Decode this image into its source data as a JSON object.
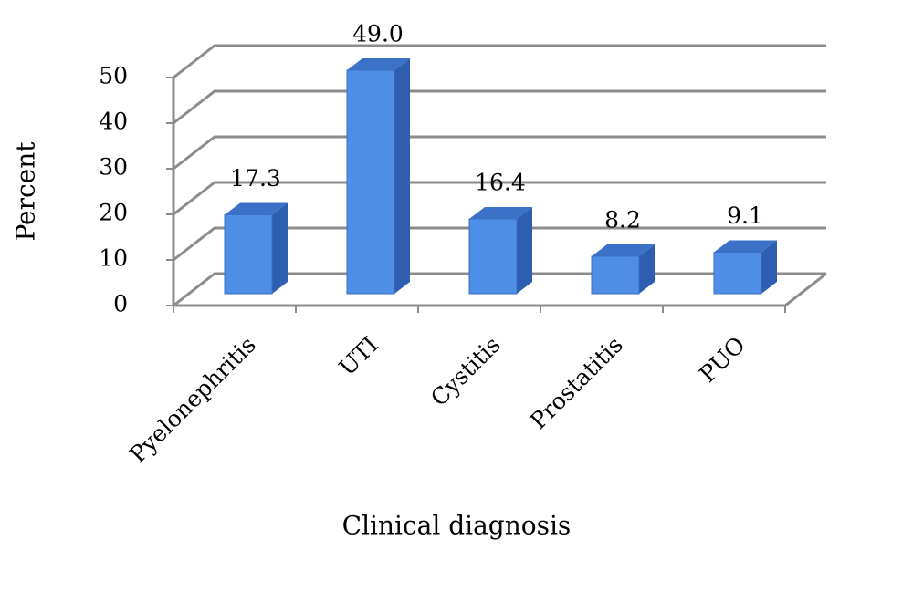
{
  "chart_data": {
    "type": "bar3d",
    "x_label": "Clinical diagnosis",
    "y_label": "Percent",
    "categories": [
      "Pyelonephritis",
      "UTI",
      "Cystitis",
      "Prostatitis",
      "PUO"
    ],
    "values": [
      17.3,
      49.0,
      16.4,
      8.2,
      9.1
    ],
    "value_labels": [
      "17.3",
      "49.0",
      "16.4",
      "8.2",
      "9.1"
    ],
    "color": "#4f8ee6",
    "ylim": [
      0,
      50
    ],
    "yticks": [
      0,
      10,
      20,
      30,
      40,
      50
    ],
    "grid": true
  }
}
